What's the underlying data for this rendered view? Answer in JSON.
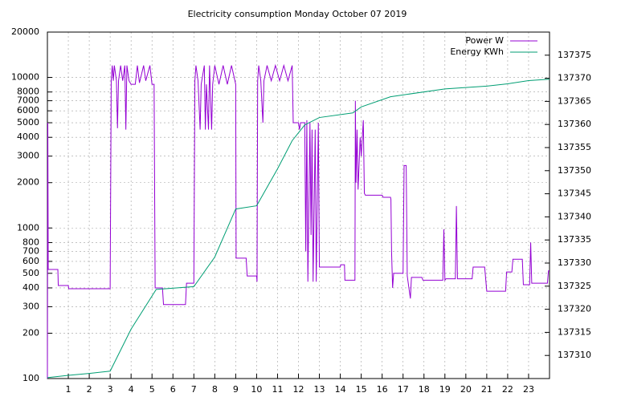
{
  "chart_data": {
    "type": "line",
    "title": "Electricity consumption Monday October 07 2019",
    "xlim": [
      0,
      24
    ],
    "xticks": [
      1,
      2,
      3,
      4,
      5,
      6,
      7,
      8,
      9,
      10,
      11,
      12,
      13,
      14,
      15,
      16,
      17,
      18,
      19,
      20,
      21,
      22,
      23
    ],
    "ylim": [
      100,
      20000
    ],
    "yticks": [
      100,
      200,
      300,
      400,
      500,
      600,
      700,
      800,
      1000,
      2000,
      3000,
      4000,
      5000,
      6000,
      7000,
      8000,
      10000,
      20000
    ],
    "y_log": true,
    "y2lim": [
      137305,
      137380
    ],
    "y2ticks": [
      137310,
      137315,
      137320,
      137325,
      137330,
      137335,
      137340,
      137345,
      137350,
      137355,
      137360,
      137365,
      137370,
      137375
    ],
    "grid": true,
    "legend": "top right",
    "series": [
      {
        "name": "Power W",
        "color": "#9400d3",
        "x": [
          0,
          0.02,
          0.04,
          0.5,
          0.52,
          1,
          1.02,
          3.0,
          3.05,
          3.1,
          3.15,
          3.2,
          3.3,
          3.35,
          3.4,
          3.5,
          3.6,
          3.7,
          3.75,
          3.8,
          3.9,
          4.0,
          4.2,
          4.3,
          4.4,
          4.6,
          4.7,
          4.9,
          5.0,
          5.1,
          5.15,
          5.5,
          5.55,
          6.6,
          6.65,
          7.0,
          7.05,
          7.1,
          7.2,
          7.3,
          7.35,
          7.5,
          7.55,
          7.6,
          7.7,
          7.75,
          7.85,
          7.9,
          8.0,
          8.2,
          8.4,
          8.6,
          8.8,
          9.0,
          9.02,
          9.5,
          9.55,
          10.0,
          10.02,
          10.05,
          10.1,
          10.2,
          10.3,
          10.35,
          10.5,
          10.7,
          10.9,
          11.1,
          11.3,
          11.5,
          11.7,
          11.75,
          12.0,
          12.05,
          12.1,
          12.3,
          12.35,
          12.4,
          12.45,
          12.55,
          12.6,
          12.65,
          12.7,
          12.8,
          12.85,
          12.95,
          13.0,
          14.0,
          14.02,
          14.2,
          14.22,
          14.7,
          14.72,
          14.75,
          14.8,
          14.85,
          14.95,
          15.0,
          15.1,
          15.15,
          15.2,
          16.0,
          16.05,
          16.4,
          16.42,
          16.45,
          16.5,
          16.55,
          17.0,
          17.05,
          17.15,
          17.2,
          17.35,
          17.4,
          17.9,
          17.95,
          18.9,
          18.95,
          19.0,
          19.05,
          19.5,
          19.55,
          19.6,
          20.3,
          20.35,
          20.9,
          21.0,
          21.9,
          21.95,
          22.2,
          22.25,
          22.7,
          22.75,
          23.05,
          23.1,
          23.15,
          23.9,
          23.95,
          24
        ],
        "values": [
          100,
          5000,
          530,
          530,
          415,
          415,
          395,
          395,
          9500,
          12000,
          9500,
          12000,
          9500,
          4600,
          9500,
          12000,
          9500,
          12000,
          4500,
          12000,
          9500,
          9000,
          9000,
          12000,
          9200,
          12000,
          9500,
          12000,
          9000,
          9000,
          400,
          400,
          310,
          310,
          430,
          430,
          9500,
          12000,
          9500,
          4500,
          9000,
          12000,
          4500,
          9000,
          4500,
          12000,
          4500,
          9000,
          12000,
          9000,
          12000,
          9000,
          12000,
          9000,
          630,
          630,
          480,
          480,
          440,
          9500,
          12000,
          9500,
          5000,
          9500,
          12000,
          9500,
          12000,
          9500,
          12000,
          9500,
          12000,
          5000,
          5000,
          4500,
          5000,
          5000,
          700,
          5200,
          440,
          5000,
          900,
          4500,
          440,
          4500,
          440,
          5000,
          550,
          550,
          570,
          570,
          450,
          450,
          7000,
          2000,
          4500,
          1800,
          4000,
          3000,
          5200,
          1700,
          1650,
          1650,
          1600,
          1600,
          1550,
          700,
          400,
          500,
          500,
          2600,
          2600,
          480,
          340,
          470,
          470,
          450,
          450,
          980,
          450,
          460,
          460,
          1400,
          460,
          460,
          550,
          550,
          380,
          380,
          510,
          510,
          620,
          620,
          420,
          420,
          800,
          430,
          430,
          520,
          520
        ]
      },
      {
        "name": "Energy KWh",
        "color": "#009e73",
        "axis": "y2",
        "x": [
          0,
          1,
          2,
          3,
          4,
          5.2,
          7,
          8,
          9,
          10,
          11,
          11.7,
          12.3,
          13,
          14.6,
          15,
          16.4,
          17,
          19,
          21,
          22,
          23,
          24
        ],
        "values": [
          137305.2,
          137305.7,
          137306.1,
          137306.6,
          137315.7,
          137324.3,
          137324.9,
          137331.3,
          137341.7,
          137342.4,
          137350.4,
          137356.5,
          137359.9,
          137361.5,
          137362.5,
          137363.8,
          137366.0,
          137366.4,
          137367.7,
          137368.3,
          137368.8,
          137369.5,
          137369.8
        ]
      }
    ]
  }
}
